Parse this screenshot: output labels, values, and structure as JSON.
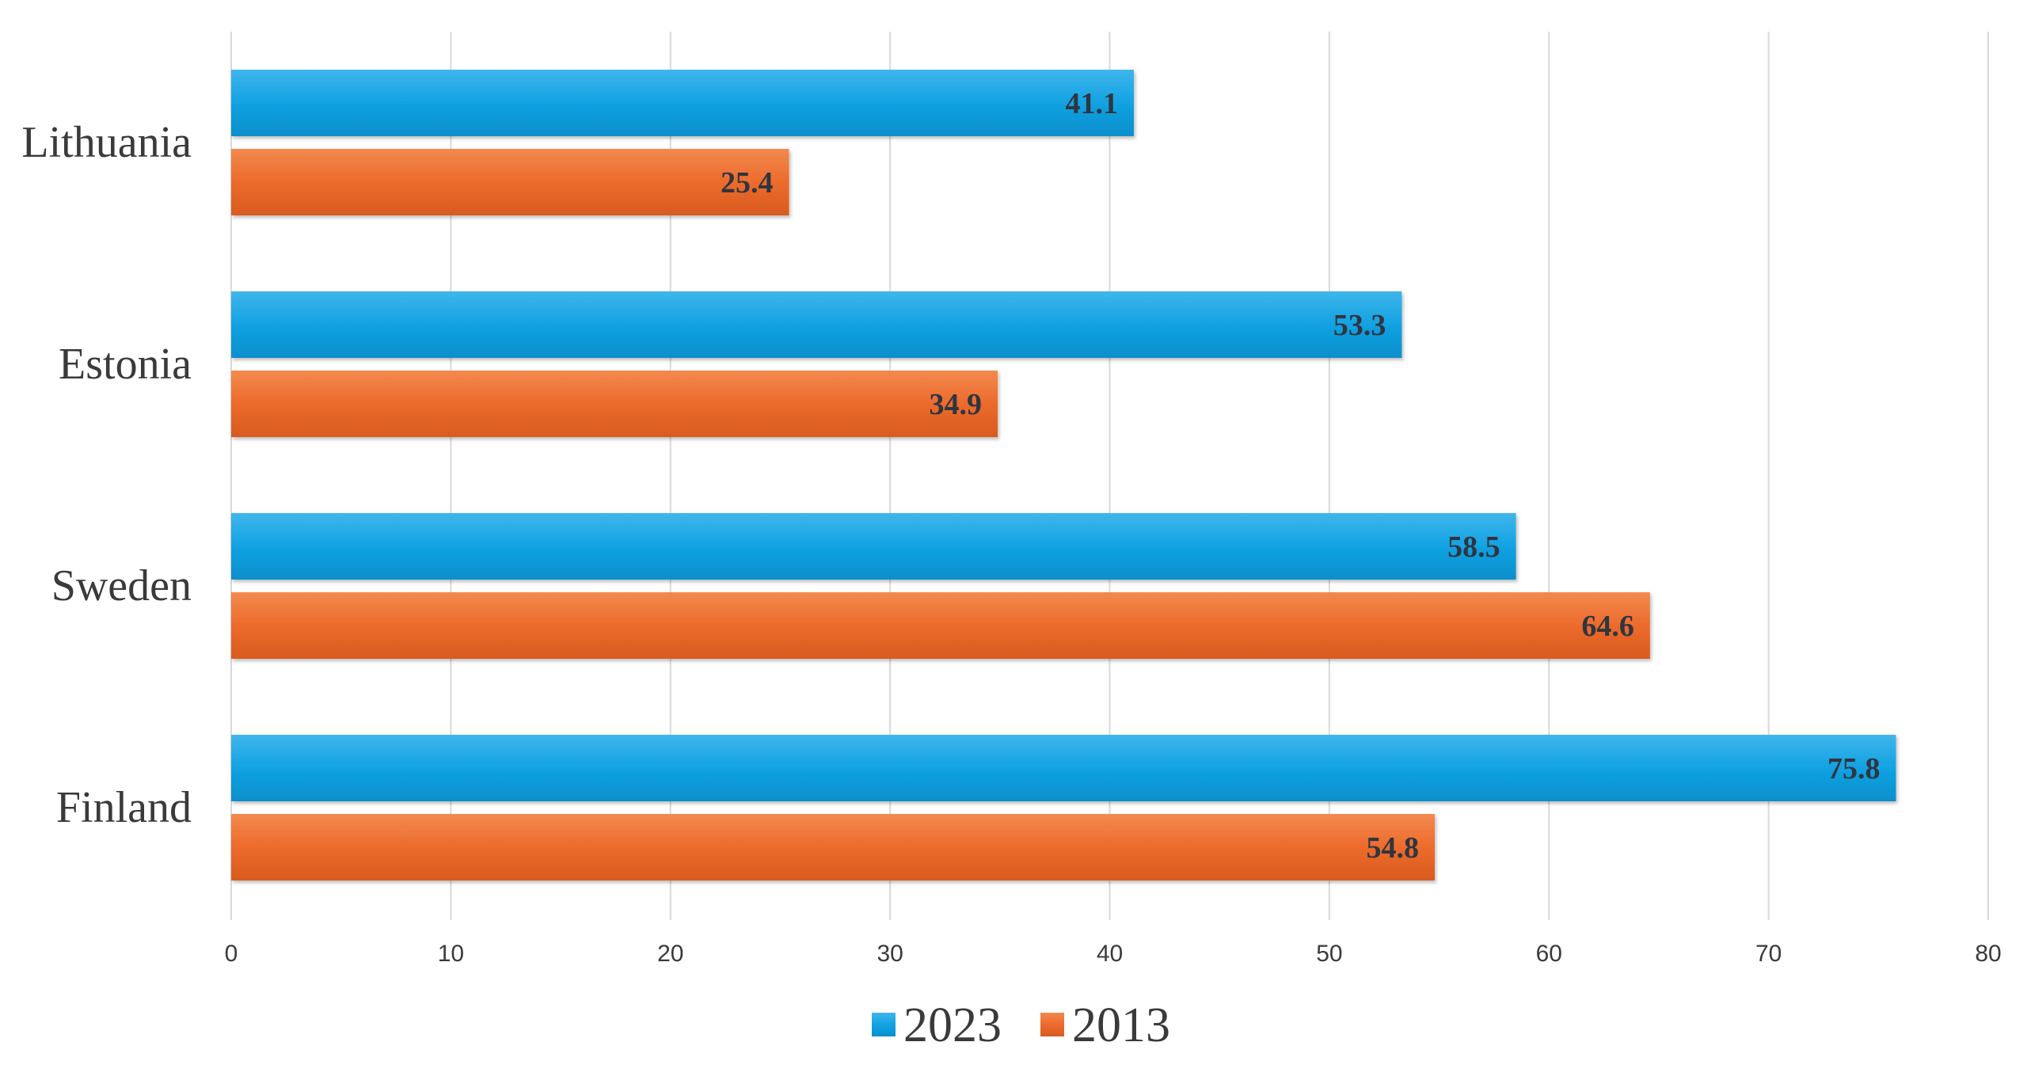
{
  "chart_data": {
    "type": "bar",
    "orientation": "horizontal",
    "categories": [
      "Lithuania",
      "Estonia",
      "Sweden",
      "Finland"
    ],
    "series": [
      {
        "name": "2023",
        "color": "#0f9fe0",
        "values": [
          41.1,
          53.3,
          58.5,
          75.8
        ]
      },
      {
        "name": "2013",
        "color": "#ee6a2a",
        "values": [
          25.4,
          34.9,
          64.6,
          54.8
        ]
      }
    ],
    "xlim": [
      0,
      80
    ],
    "x_ticks": [
      0,
      10,
      20,
      30,
      40,
      50,
      60,
      70,
      80
    ],
    "grid": true,
    "legend_position": "bottom",
    "data_labels": true
  }
}
